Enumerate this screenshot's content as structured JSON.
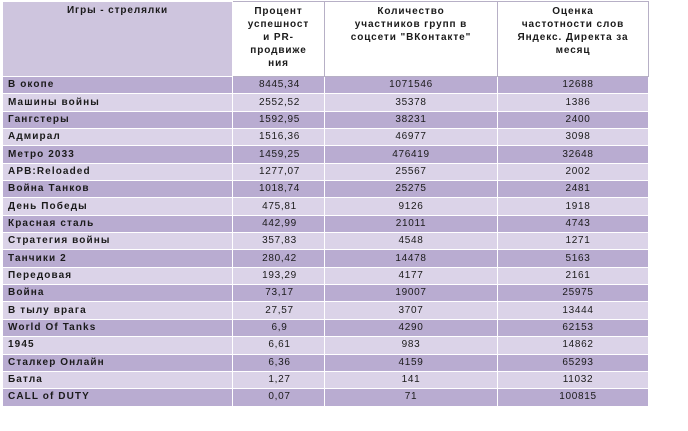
{
  "header": {
    "col1": "Игры - стрелялки",
    "col2_lines": [
      "Процент",
      "успешност",
      "и PR-",
      "продвиже",
      "ния"
    ],
    "col3_lines": [
      "Количество",
      "участников групп в",
      "соцсети \"ВКонтакте\""
    ],
    "col4_lines": [
      "Оценка",
      "частотности слов",
      "Яндекс. Директа за",
      "месяц"
    ]
  },
  "rows": [
    {
      "name": "В окопе",
      "pr": "8445,34",
      "vk": "1071546",
      "yandex": "12688"
    },
    {
      "name": "Машины войны",
      "pr": "2552,52",
      "vk": "35378",
      "yandex": "1386"
    },
    {
      "name": "Гангстеры",
      "pr": "1592,95",
      "vk": "38231",
      "yandex": "2400"
    },
    {
      "name": "Адмирал",
      "pr": "1516,36",
      "vk": "46977",
      "yandex": "3098"
    },
    {
      "name": "Метро 2033",
      "pr": "1459,25",
      "vk": "476419",
      "yandex": "32648"
    },
    {
      "name": "APB:Reloaded",
      "pr": "1277,07",
      "vk": "25567",
      "yandex": "2002"
    },
    {
      "name": "Война Танков",
      "pr": "1018,74",
      "vk": "25275",
      "yandex": "2481"
    },
    {
      "name": "День Победы",
      "pr": "475,81",
      "vk": "9126",
      "yandex": "1918"
    },
    {
      "name": "Красная сталь",
      "pr": "442,99",
      "vk": "21011",
      "yandex": "4743"
    },
    {
      "name": "Стратегия войны",
      "pr": "357,83",
      "vk": "4548",
      "yandex": "1271"
    },
    {
      "name": "Танчики 2",
      "pr": "280,42",
      "vk": "14478",
      "yandex": "5163"
    },
    {
      "name": "Передовая",
      "pr": "193,29",
      "vk": "4177",
      "yandex": "2161"
    },
    {
      "name": "Война",
      "pr": "73,17",
      "vk": "19007",
      "yandex": "25975"
    },
    {
      "name": "В тылу врага",
      "pr": "27,57",
      "vk": "3707",
      "yandex": "13444"
    },
    {
      "name": "World Of Tanks",
      "pr": "6,9",
      "vk": "4290",
      "yandex": "62153"
    },
    {
      "name": "1945",
      "pr": "6,61",
      "vk": "983",
      "yandex": "14862"
    },
    {
      "name": "Сталкер Онлайн",
      "pr": "6,36",
      "vk": "4159",
      "yandex": "65293"
    },
    {
      "name": "Батла",
      "pr": "1,27",
      "vk": "141",
      "yandex": "11032"
    },
    {
      "name": "CALL of DUTY",
      "pr": "0,07",
      "vk": "71",
      "yandex": "100815"
    }
  ],
  "colors": {
    "header_name_bg": "#cec5de",
    "row_dark": "#b9acd1",
    "row_light": "#dbd3e8"
  }
}
